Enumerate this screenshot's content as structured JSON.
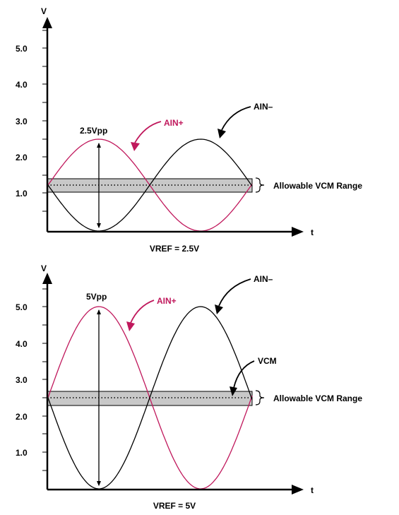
{
  "colors": {
    "ain_plus": "#c0185c",
    "ain_minus": "#000000",
    "band_fill": "#c8c8c8"
  },
  "panels": [
    {
      "v_axis_label": "V",
      "t_axis_label": "t",
      "y_tick_labels": [
        "5.0",
        "4.0",
        "3.0",
        "2.0",
        "1.0"
      ],
      "pp_label": "2.5Vpp",
      "ain_plus_label": "AIN+",
      "ain_minus_label": "AIN–",
      "range_label": "Allowable VCM Range",
      "vcm_label": "",
      "caption": "VREF = 2.5V"
    },
    {
      "v_axis_label": "V",
      "t_axis_label": "t",
      "y_tick_labels": [
        "5.0",
        "4.0",
        "3.0",
        "2.0",
        "1.0"
      ],
      "pp_label": "5Vpp",
      "ain_plus_label": "AIN+",
      "ain_minus_label": "AIN–",
      "range_label": "Allowable VCM Range",
      "vcm_label": "VCM",
      "caption": "VREF = 5V"
    }
  ]
}
